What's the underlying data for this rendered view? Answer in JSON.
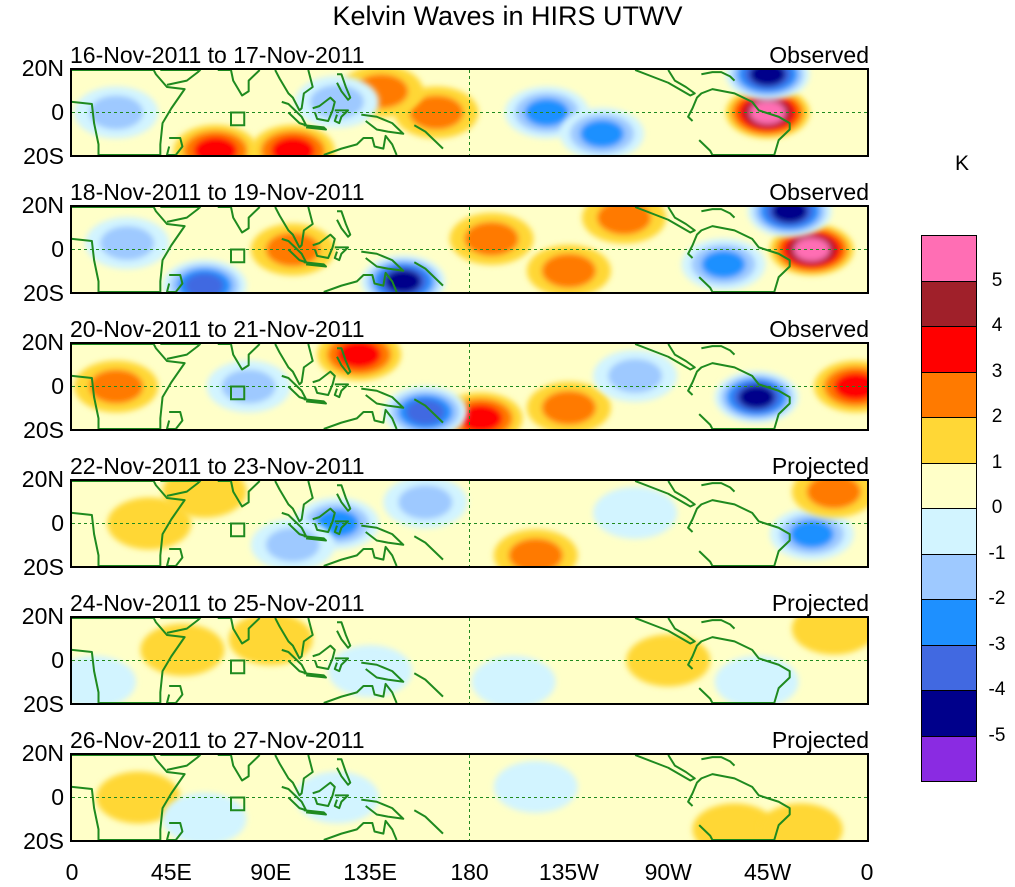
{
  "title": "Kelvin Waves in HIRS UTWV",
  "panels": [
    {
      "date": "16-Nov-2011 to 17-Nov-2011",
      "tag": "Observed"
    },
    {
      "date": "18-Nov-2011 to 19-Nov-2011",
      "tag": "Observed"
    },
    {
      "date": "20-Nov-2011 to 21-Nov-2011",
      "tag": "Observed"
    },
    {
      "date": "22-Nov-2011 to 23-Nov-2011",
      "tag": "Projected"
    },
    {
      "date": "24-Nov-2011 to 25-Nov-2011",
      "tag": "Projected"
    },
    {
      "date": "26-Nov-2011 to 27-Nov-2011",
      "tag": "Projected"
    }
  ],
  "lat_labels": [
    "20N",
    "0",
    "20S"
  ],
  "lon_labels": [
    "0",
    "45E",
    "90E",
    "135E",
    "180",
    "135W",
    "90W",
    "45W",
    "0"
  ],
  "colorbar": {
    "title": "K",
    "levels": [
      "5",
      "4",
      "3",
      "2",
      "1",
      "0",
      "-1",
      "-2",
      "-3",
      "-4",
      "-5"
    ],
    "colors": [
      "#ff6eb4",
      "#a0202a",
      "#ff0000",
      "#ff7a00",
      "#ffd736",
      "#ffffc8",
      "#d2f4ff",
      "#9ec9ff",
      "#1e90ff",
      "#4169e1",
      "#00008b",
      "#8a2be2"
    ]
  },
  "colors": {
    "coastline": "#1f8a1f",
    "guide": "#1f8a1f",
    "frame": "#000000"
  },
  "chart_data": {
    "type": "heatmap",
    "title": "Kelvin Waves in HIRS UTWV",
    "units": "K",
    "lon_range": [
      0,
      360
    ],
    "lat_range": [
      -20,
      20
    ],
    "contour_levels": [
      -5,
      -4,
      -3,
      -2,
      -1,
      0,
      1,
      2,
      3,
      4,
      5
    ],
    "anomaly_features": [
      [
        {
          "lon": 315,
          "lat": 0,
          "value": 5
        },
        {
          "lon": 315,
          "lat": 18,
          "value": -5
        },
        {
          "lon": 20,
          "lat": 0,
          "value": -2
        },
        {
          "lon": 65,
          "lat": -18,
          "value": 3
        },
        {
          "lon": 100,
          "lat": -18,
          "value": 3
        },
        {
          "lon": 165,
          "lat": 0,
          "value": 2
        },
        {
          "lon": 215,
          "lat": 0,
          "value": -3
        },
        {
          "lon": 240,
          "lat": -10,
          "value": -3
        },
        {
          "lon": 140,
          "lat": 10,
          "value": 2
        },
        {
          "lon": 120,
          "lat": 5,
          "value": -2
        }
      ],
      [
        {
          "lon": 335,
          "lat": 0,
          "value": 5
        },
        {
          "lon": 325,
          "lat": 18,
          "value": -5
        },
        {
          "lon": 150,
          "lat": -15,
          "value": -5
        },
        {
          "lon": 60,
          "lat": -17,
          "value": -4
        },
        {
          "lon": 100,
          "lat": 0,
          "value": 2
        },
        {
          "lon": 190,
          "lat": 5,
          "value": 2
        },
        {
          "lon": 225,
          "lat": -10,
          "value": 2
        },
        {
          "lon": 25,
          "lat": 3,
          "value": -2
        },
        {
          "lon": 295,
          "lat": -7,
          "value": -3
        },
        {
          "lon": 250,
          "lat": 15,
          "value": 2
        }
      ],
      [
        {
          "lon": 20,
          "lat": 0,
          "value": 2
        },
        {
          "lon": 130,
          "lat": 15,
          "value": 3
        },
        {
          "lon": 185,
          "lat": -15,
          "value": 3
        },
        {
          "lon": 160,
          "lat": -12,
          "value": -4
        },
        {
          "lon": 310,
          "lat": -5,
          "value": -5
        },
        {
          "lon": 355,
          "lat": 0,
          "value": 3
        },
        {
          "lon": 80,
          "lat": 0,
          "value": -2
        },
        {
          "lon": 225,
          "lat": -10,
          "value": 2
        },
        {
          "lon": 255,
          "lat": 5,
          "value": -2
        }
      ],
      [
        {
          "lon": 35,
          "lat": 0,
          "value": 1
        },
        {
          "lon": 60,
          "lat": 15,
          "value": 1
        },
        {
          "lon": 120,
          "lat": 0,
          "value": -3
        },
        {
          "lon": 100,
          "lat": -10,
          "value": -2
        },
        {
          "lon": 210,
          "lat": -15,
          "value": 2
        },
        {
          "lon": 335,
          "lat": -5,
          "value": -3
        },
        {
          "lon": 160,
          "lat": 10,
          "value": -2
        },
        {
          "lon": 255,
          "lat": 5,
          "value": -1
        },
        {
          "lon": 345,
          "lat": 15,
          "value": 2
        }
      ],
      [
        {
          "lon": 50,
          "lat": 5,
          "value": 1
        },
        {
          "lon": 90,
          "lat": 10,
          "value": 1
        },
        {
          "lon": 10,
          "lat": -10,
          "value": -1
        },
        {
          "lon": 135,
          "lat": -5,
          "value": -1
        },
        {
          "lon": 200,
          "lat": -10,
          "value": -1
        },
        {
          "lon": 270,
          "lat": 0,
          "value": 1
        },
        {
          "lon": 345,
          "lat": 15,
          "value": 1
        },
        {
          "lon": 310,
          "lat": -10,
          "value": -1
        }
      ],
      [
        {
          "lon": 30,
          "lat": 0,
          "value": 1
        },
        {
          "lon": 120,
          "lat": 0,
          "value": -1
        },
        {
          "lon": 210,
          "lat": 5,
          "value": -1
        },
        {
          "lon": 300,
          "lat": -15,
          "value": 1
        },
        {
          "lon": 330,
          "lat": -15,
          "value": 1
        },
        {
          "lon": 60,
          "lat": -10,
          "value": -1
        }
      ]
    ]
  }
}
